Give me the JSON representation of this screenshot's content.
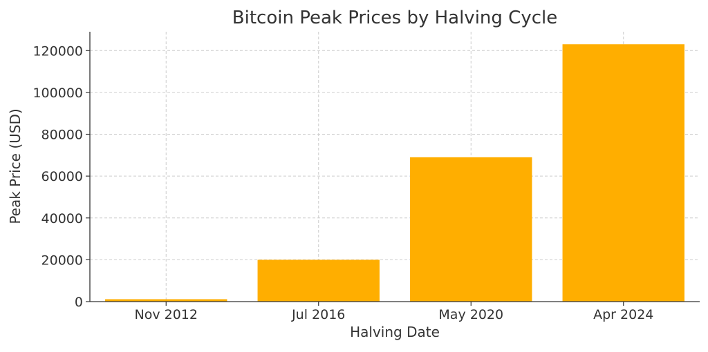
{
  "chart_data": {
    "type": "bar",
    "title": "Bitcoin Peak Prices by Halving Cycle",
    "xlabel": "Halving Date",
    "ylabel": "Peak Price (USD)",
    "categories": [
      "Nov 2012",
      "Jul 2016",
      "May 2020",
      "Apr 2024"
    ],
    "values": [
      1150,
      20000,
      69000,
      123000
    ],
    "ylim": [
      0,
      129000
    ],
    "yticks": [
      0,
      20000,
      40000,
      60000,
      80000,
      100000,
      120000
    ],
    "grid": true,
    "bar_color": "#FFAE00"
  }
}
